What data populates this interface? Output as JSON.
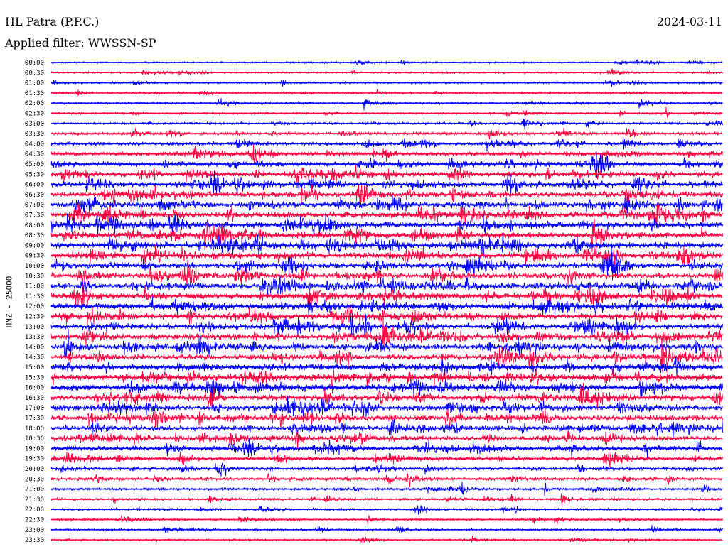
{
  "header": {
    "station": "HL Patra (P.P.C.)",
    "filter": "Applied filter: WWSSN-SP",
    "date": "2024-03-11"
  },
  "chart_data": {
    "type": "line",
    "title": "HL Patra (P.P.C.)",
    "subtitle": "Applied filter: WWSSN-SP",
    "date": "2024-03-11",
    "ylabel": "HNZ - 25000",
    "xlabel": "",
    "grid": false,
    "colors": {
      "even_trace": "#0000ff",
      "odd_trace": "#ff0040",
      "background": "#ffffff"
    },
    "row_labels": [
      "00:00",
      "00:30",
      "01:00",
      "01:30",
      "02:00",
      "02:30",
      "03:00",
      "03:30",
      "04:00",
      "04:30",
      "05:00",
      "05:30",
      "06:00",
      "06:30",
      "07:00",
      "07:30",
      "08:00",
      "08:30",
      "09:00",
      "09:30",
      "10:00",
      "10:30",
      "11:00",
      "11:30",
      "12:00",
      "12:30",
      "13:00",
      "13:30",
      "14:00",
      "14:30",
      "15:00",
      "15:30",
      "16:00",
      "16:30",
      "17:00",
      "17:30",
      "18:00",
      "18:30",
      "19:00",
      "19:30",
      "20:00",
      "20:30",
      "21:00",
      "21:30",
      "22:00",
      "22:30",
      "23:00",
      "23:30"
    ],
    "activity_level": [
      0.12,
      0.14,
      0.14,
      0.16,
      0.18,
      0.22,
      0.28,
      0.38,
      0.5,
      0.62,
      0.78,
      0.88,
      0.92,
      0.95,
      0.97,
      1.0,
      1.0,
      1.0,
      1.0,
      1.0,
      1.0,
      1.0,
      1.0,
      1.0,
      1.0,
      1.0,
      1.0,
      1.0,
      1.0,
      1.0,
      1.0,
      1.0,
      1.0,
      1.0,
      0.97,
      0.95,
      0.9,
      0.82,
      0.72,
      0.6,
      0.5,
      0.42,
      0.34,
      0.3,
      0.26,
      0.22,
      0.18,
      0.15
    ]
  }
}
